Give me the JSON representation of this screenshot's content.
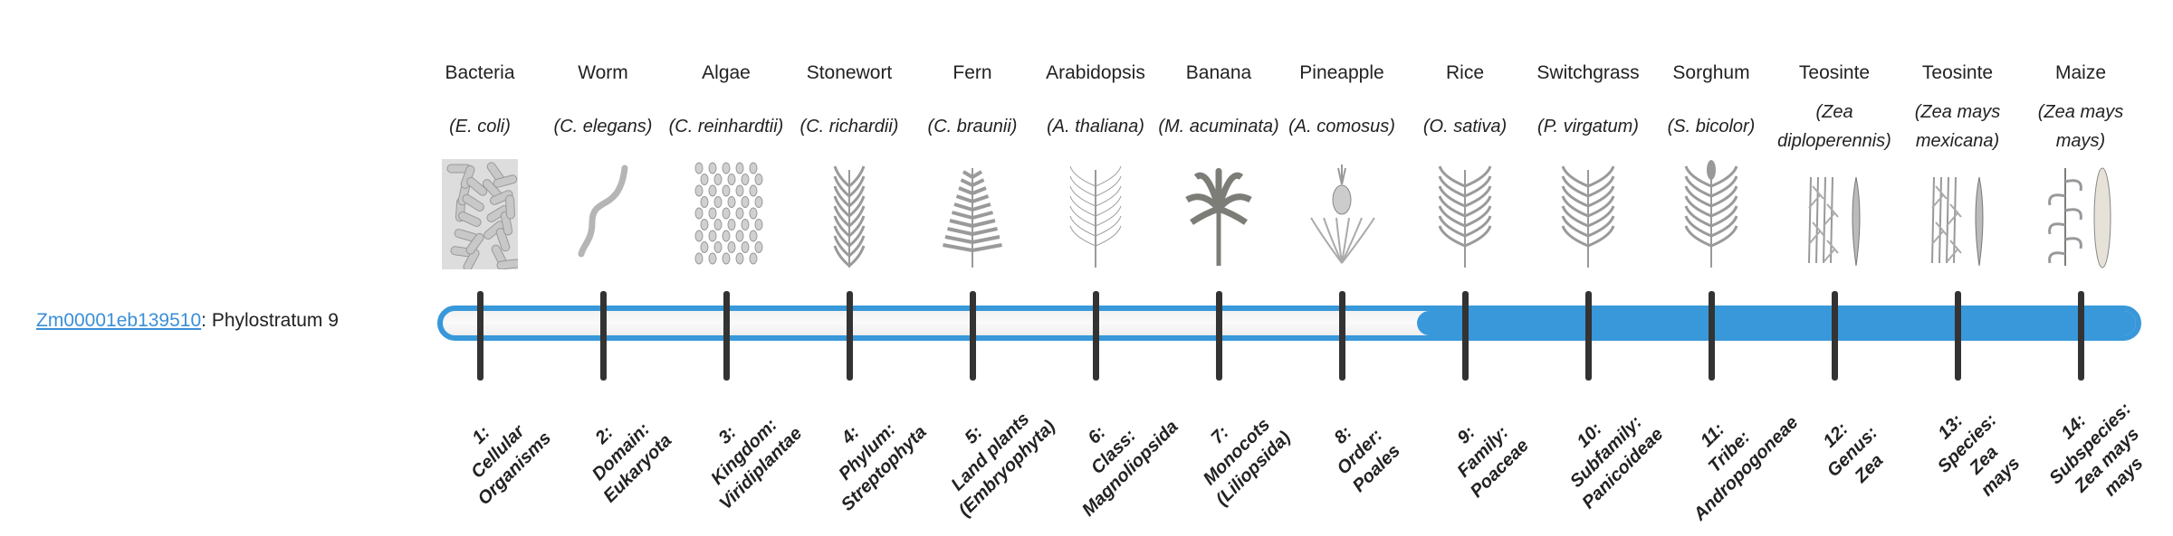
{
  "gene": {
    "id": "Zm00001eb139510",
    "suffix": ": Phylostratum 9",
    "phylostratum": 9
  },
  "colors": {
    "bar": "#3898da",
    "tick": "#333333",
    "link": "#3a8fd8"
  },
  "organisms": [
    {
      "name": "Bacteria",
      "species": "(E. coli)",
      "icon": "bacteria-icon",
      "stratum": [
        "1:",
        "Cellular",
        "Organisms"
      ]
    },
    {
      "name": "Worm",
      "species": "(C. elegans)",
      "icon": "worm-icon",
      "stratum": [
        "2:",
        "Domain:",
        "Eukaryota"
      ]
    },
    {
      "name": "Algae",
      "species": "(C. reinhardtii)",
      "icon": "algae-icon",
      "stratum": [
        "3:",
        "Kingdom:",
        "Viridiplantae"
      ]
    },
    {
      "name": "Stonewort",
      "species": "(C. richardii)",
      "icon": "stonewort-icon",
      "stratum": [
        "4:",
        "Phylum:",
        "Streptophyta"
      ]
    },
    {
      "name": "Fern",
      "species": "(C. braunii)",
      "icon": "fern-icon",
      "stratum": [
        "5:",
        "Land plants",
        "(Embryophyta)"
      ]
    },
    {
      "name": "Arabidopsis",
      "species": "(A. thaliana)",
      "icon": "arabidopsis-icon",
      "stratum": [
        "6:",
        "Class:",
        "Magnoliopsida"
      ]
    },
    {
      "name": "Banana",
      "species": "(M. acuminata)",
      "icon": "banana-plant-icon",
      "stratum": [
        "7:",
        "Monocots",
        "(Liliopsida)"
      ]
    },
    {
      "name": "Pineapple",
      "species": "(A. comosus)",
      "icon": "pineapple-icon",
      "stratum": [
        "8:",
        "Order:",
        "Poales"
      ]
    },
    {
      "name": "Rice",
      "species": "(O. sativa)",
      "icon": "rice-icon",
      "stratum": [
        "9:",
        "Family:",
        "Poaceae"
      ]
    },
    {
      "name": "Switchgrass",
      "species": "(P. virgatum)",
      "icon": "switchgrass-icon",
      "stratum": [
        "10:",
        "Subfamily:",
        "Panicoideae"
      ]
    },
    {
      "name": "Sorghum",
      "species": "(S. bicolor)",
      "icon": "sorghum-icon",
      "stratum": [
        "11:",
        "Tribe:",
        "Andropogoneae"
      ]
    },
    {
      "name": "Teosinte",
      "species": "(Zea diploperennis)",
      "icon": "teosinte-icon",
      "stratum": [
        "12:",
        "Genus:",
        "Zea"
      ]
    },
    {
      "name": "Teosinte",
      "species": "(Zea mays mexicana)",
      "icon": "teosinte-icon",
      "stratum": [
        "13:",
        "Species:",
        "Zea",
        "mays"
      ]
    },
    {
      "name": "Maize",
      "species": "(Zea mays mays)",
      "icon": "maize-icon",
      "stratum": [
        "14:",
        "Subspecies:",
        "Zea mays",
        "mays"
      ]
    }
  ]
}
